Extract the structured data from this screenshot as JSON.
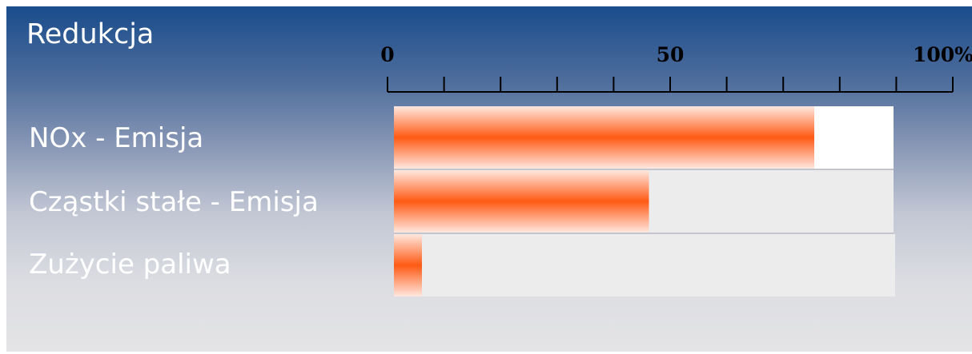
{
  "chart_data": {
    "type": "bar",
    "orientation": "horizontal",
    "title": "Redukcja",
    "categories": [
      "NOx - Emisja",
      "Cząstki stałe - Emisja",
      "Zużycie paliwa"
    ],
    "values": [
      75,
      45.5,
      5
    ],
    "xlim": [
      0,
      100
    ],
    "tick_labels": [
      "0",
      "50",
      "100%"
    ],
    "tick_values": [
      0,
      50,
      100
    ],
    "minor_tick_step": 10,
    "grid": false,
    "legend": "none",
    "colors": {
      "bar_center": "#ff5a14",
      "bar_edge": "#ffe8e0",
      "track": "#ececec",
      "track_first": "#ffffff",
      "label": "#ffffff",
      "axis": "#000000"
    }
  }
}
